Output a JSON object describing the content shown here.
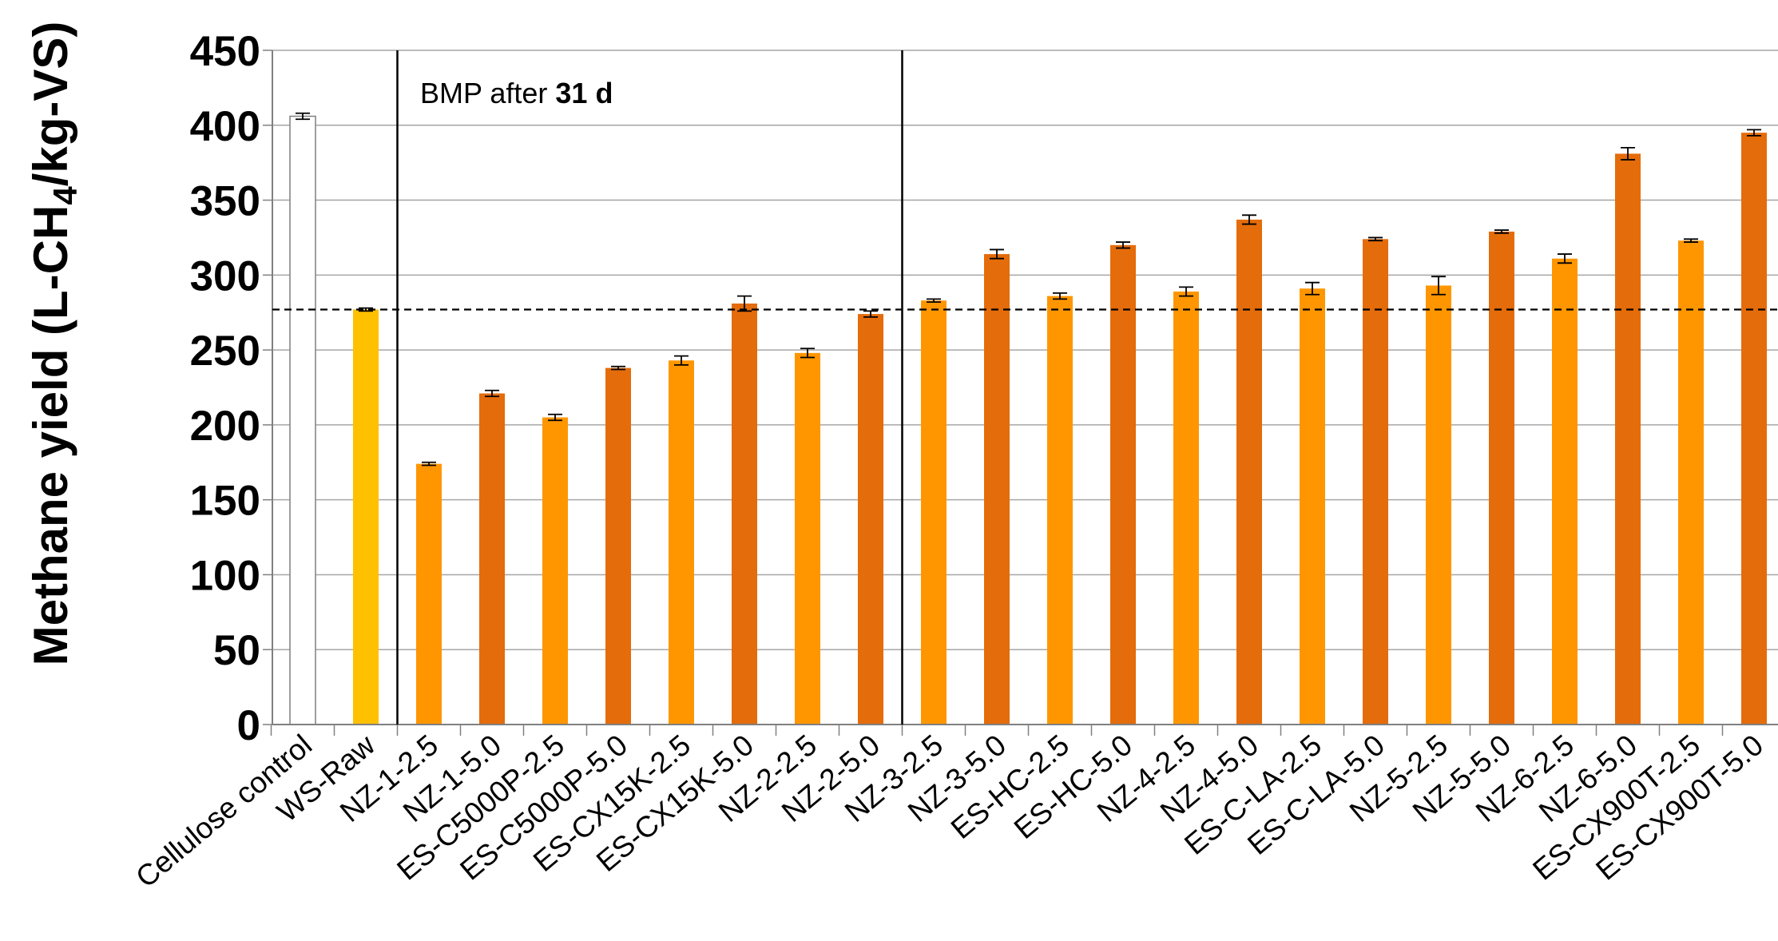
{
  "chart_data": {
    "type": "bar",
    "ylabel_parts": [
      "Methane yield (L-CH",
      "4",
      "/kg-VS)"
    ],
    "xlabel": "",
    "ylim": [
      0,
      450
    ],
    "yticks": [
      0,
      50,
      100,
      150,
      200,
      250,
      300,
      350,
      400,
      450
    ],
    "grid": "horizontal",
    "annotation_parts": [
      "BMP after ",
      "31 d"
    ],
    "reference_line_value": 277,
    "colors": {
      "white": "#ffffff",
      "gold": "#ffc000",
      "light_orange": "#ff9600",
      "dark_orange": "#e46c0a",
      "grid": "#a6a6a6",
      "axis": "#808080"
    },
    "categories": [
      "Cellulose control",
      "WS-Raw",
      "NZ-1-2.5",
      "NZ-1-5.0",
      "ES-C5000P-2.5",
      "ES-C5000P-5.0",
      "ES-CX15K-2.5",
      "ES-CX15K-5.0",
      "NZ-2-2.5",
      "NZ-2-5.0",
      "NZ-3-2.5",
      "NZ-3-5.0",
      "ES-HC-2.5",
      "ES-HC-5.0",
      "NZ-4-2.5",
      "NZ-4-5.0",
      "ES-C-LA-2.5",
      "ES-C-LA-5.0",
      "NZ-5-2.5",
      "NZ-5-5.0",
      "NZ-6-2.5",
      "NZ-6-5.0",
      "ES-CX900T-2.5",
      "ES-CX900T-5.0"
    ],
    "values": [
      406,
      277,
      174,
      221,
      205,
      238,
      243,
      281,
      248,
      274,
      283,
      314,
      286,
      320,
      289,
      337,
      291,
      324,
      293,
      329,
      311,
      381,
      323,
      395
    ],
    "errors": [
      2,
      1,
      1,
      2,
      2,
      1,
      3,
      5,
      3,
      2,
      1,
      3,
      2,
      2,
      3,
      3,
      4,
      1,
      6,
      1,
      3,
      4,
      1,
      2
    ],
    "bar_colors": [
      "white",
      "gold",
      "light_orange",
      "dark_orange",
      "light_orange",
      "dark_orange",
      "light_orange",
      "dark_orange",
      "light_orange",
      "dark_orange",
      "light_orange",
      "dark_orange",
      "light_orange",
      "dark_orange",
      "light_orange",
      "dark_orange",
      "light_orange",
      "dark_orange",
      "light_orange",
      "dark_orange",
      "light_orange",
      "dark_orange",
      "light_orange",
      "dark_orange"
    ],
    "group_separator_after_index": [
      1,
      9
    ]
  }
}
